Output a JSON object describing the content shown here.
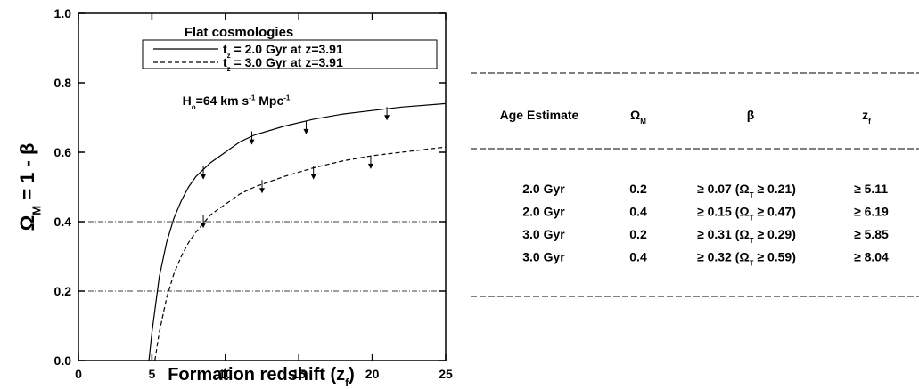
{
  "chart_data": {
    "type": "line",
    "title": "Flat cosmologies",
    "x_label": [
      "Formation redshift (z",
      {
        "sub": "f"
      },
      ")"
    ],
    "y_label": [
      "Ω",
      {
        "sub": "M"
      },
      " = 1 - β"
    ],
    "annotation": [
      "H",
      {
        "sub": "o"
      },
      "=64 km s",
      {
        "sup": "-1"
      },
      " Mpc",
      {
        "sup": "-1"
      }
    ],
    "xlim": [
      0,
      25
    ],
    "xticks": [
      0,
      5,
      10,
      15,
      20,
      25
    ],
    "ylim": [
      0,
      1.0
    ],
    "yticks": [
      {
        "value": 0.0,
        "label": "0.0"
      },
      0.2,
      0.4,
      0.6,
      0.8,
      {
        "value": 1.0,
        "label": "1.0"
      }
    ],
    "hlines": [
      0.2,
      0.4
    ],
    "series": [
      {
        "name": [
          "t",
          {
            "sub": "z"
          },
          " = 2.0 Gyr at z=3.91"
        ],
        "color": "#000000",
        "dash": "solid",
        "x": [
          4.8,
          5.0,
          5.5,
          6,
          6.5,
          7,
          7.5,
          8,
          9,
          10,
          11,
          12,
          14,
          16,
          18,
          20,
          22,
          25
        ],
        "values": [
          0,
          0.08,
          0.24,
          0.34,
          0.41,
          0.46,
          0.5,
          0.53,
          0.57,
          0.6,
          0.63,
          0.65,
          0.675,
          0.695,
          0.71,
          0.72,
          0.73,
          0.74
        ],
        "limits_x": [
          8.5,
          11.8,
          15.5,
          21
        ],
        "limits": [
          0.56,
          0.66,
          0.69,
          0.73
        ]
      },
      {
        "name": [
          "t",
          {
            "sub": "z"
          },
          " = 3.0 Gyr at z=3.91"
        ],
        "color": "#000000",
        "dash": "dashed",
        "x": [
          5.2,
          5.5,
          6,
          6.5,
          7,
          7.5,
          8,
          9,
          10,
          11,
          12,
          14,
          16,
          18,
          20,
          22,
          25
        ],
        "values": [
          0,
          0.08,
          0.18,
          0.25,
          0.3,
          0.34,
          0.37,
          0.42,
          0.45,
          0.48,
          0.5,
          0.53,
          0.555,
          0.575,
          0.59,
          0.6,
          0.615
        ],
        "limits_x": [
          8.5,
          12.5,
          16,
          19.9
        ],
        "limits": [
          0.42,
          0.52,
          0.56,
          0.59
        ]
      }
    ]
  },
  "table": {
    "header": [
      "Age Estimate",
      [
        "Ω",
        {
          "sub": "M"
        }
      ],
      "β",
      [
        "z",
        {
          "sub": "f"
        }
      ]
    ],
    "rows": [
      [
        "2.0 Gyr",
        "0.2",
        [
          "≥ 0.07 (Ω",
          {
            "sub": "T"
          },
          " ≥ 0.21)"
        ],
        "≥ 5.11"
      ],
      [
        "2.0 Gyr",
        "0.4",
        [
          "≥ 0.15 (Ω",
          {
            "sub": "T"
          },
          " ≥ 0.47)"
        ],
        "≥ 6.19"
      ],
      [
        "3.0 Gyr",
        "0.2",
        [
          "≥ 0.31 (Ω",
          {
            "sub": "T"
          },
          " ≥ 0.29)"
        ],
        "≥ 5.85"
      ],
      [
        "3.0 Gyr",
        "0.4",
        [
          "≥ 0.32 (Ω",
          {
            "sub": "T"
          },
          " ≥ 0.59)"
        ],
        "≥ 8.04"
      ]
    ]
  }
}
